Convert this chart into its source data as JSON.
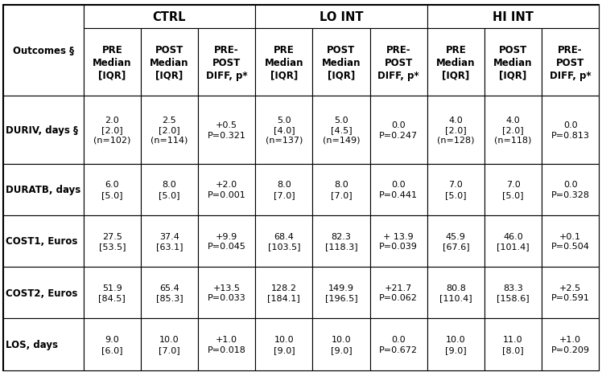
{
  "col_groups": [
    {
      "label": "CTRL",
      "span": 3
    },
    {
      "label": "LO INT",
      "span": 3
    },
    {
      "label": "HI INT",
      "span": 3
    }
  ],
  "sub_headers": [
    "PRE\nMedian\n[IQR]",
    "POST\nMedian\n[IQR]",
    "PRE-\nPOST\nDIFF, p*",
    "PRE\nMedian\n[IQR]",
    "POST\nMedian\n[IQR]",
    "PRE-\nPOST\nDIFF, p*",
    "PRE\nMedian\n[IQR]",
    "POST\nMedian\n[IQR]",
    "PRE-\nPOST\nDIFF, p*"
  ],
  "row_labels": [
    "DURIV, days §",
    "DURATB, days",
    "COST1, Euros",
    "COST2, Euros",
    "LOS, days"
  ],
  "cell_data": [
    [
      "2.0\n[2.0]\n(n=102)",
      "2.5\n[2.0]\n(n=114)",
      "+0.5\nP=0.321",
      "5.0\n[4.0]\n(n=137)",
      "5.0\n[4.5]\n(n=149)",
      "0.0\nP=0.247",
      "4.0\n[2.0]\n(n=128)",
      "4.0\n[2.0]\n(n=118)",
      "0.0\nP=0.813"
    ],
    [
      "6.0\n[5.0]",
      "8.0\n[5.0]",
      "+2.0\nP=0.001",
      "8.0\n[7.0]",
      "8.0\n[7.0]",
      "0.0\nP=0.441",
      "7.0\n[5.0]",
      "7.0\n[5.0]",
      "0.0\nP=0.328"
    ],
    [
      "27.5\n[53.5]",
      "37.4\n[63.1]",
      "+9.9\nP=0.045",
      "68.4\n[103.5]",
      "82.3\n[118.3]",
      "+ 13.9\nP=0.039",
      "45.9\n[67.6]",
      "46.0\n[101.4]",
      "+0.1\nP=0.504"
    ],
    [
      "51.9\n[84.5]",
      "65.4\n[85.3]",
      "+13.5\nP=0.033",
      "128.2\n[184.1]",
      "149.9\n[196.5]",
      "+21.7\nP=0.062",
      "80.8\n[110.4]",
      "83.3\n[158.6]",
      "+2.5\nP=0.591"
    ],
    [
      "9.0\n[6.0]",
      "10.0\n[7.0]",
      "+1.0\nP=0.018",
      "10.0\n[9.0]",
      "10.0\n[9.0]",
      "0.0\nP=0.672",
      "10.0\n[9.0]",
      "11.0\n[8.0]",
      "+1.0\nP=0.209"
    ]
  ],
  "outcomes_label": "Outcomes §",
  "bg_color": "#ffffff",
  "text_color": "#000000",
  "lw_outer": 1.5,
  "lw_inner": 0.8,
  "font_size_data": 8.0,
  "font_size_subhdr": 8.5,
  "font_size_grphdr": 10.5,
  "font_size_rowlbl": 8.5
}
